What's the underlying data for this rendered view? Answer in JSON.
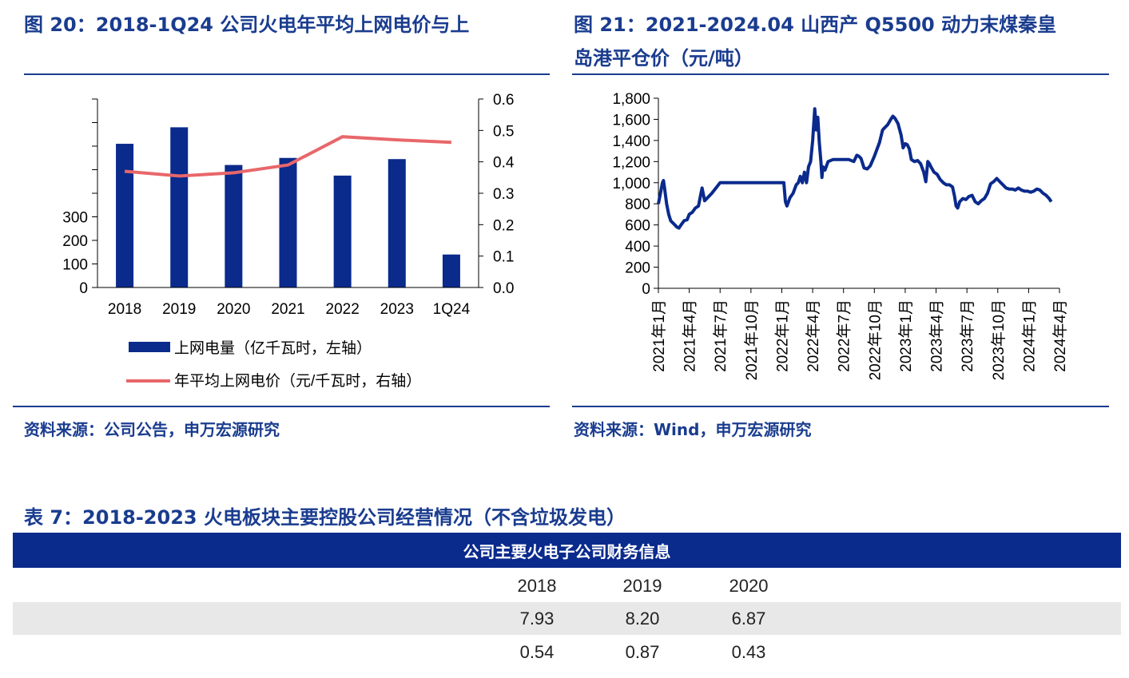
{
  "left_panel": {
    "title_line1": "图 20：2018-1Q24 公司火电年平均上网电价与上",
    "source": "资料来源：公司公告，申万宏源研究"
  },
  "right_panel": {
    "title_line1": "图 21：2021-2024.04 山西产 Q5500 动力末煤秦皇",
    "title_line2": "岛港平仓价（元/吨）",
    "source": "资料来源：Wind，申万宏源研究"
  },
  "table": {
    "title": "表 7：2018-2023 火电板块主要控股公司经营情况（不含垃圾发电）",
    "header": "公司主要火电子公司财务信息",
    "columns": [
      "2018",
      "2019",
      "2020"
    ],
    "rows": [
      [
        "7.93",
        "8.20",
        "6.87"
      ],
      [
        "0.54",
        "0.87",
        "0.43"
      ]
    ]
  },
  "chart_data": [
    {
      "type": "bar",
      "categories": [
        "2018",
        "2019",
        "2020",
        "2021",
        "2022",
        "2023",
        "1Q24"
      ],
      "series": [
        {
          "name": "上网电量（亿千瓦时，左轴）",
          "type": "bar",
          "axis": "left",
          "color": "#0a2a8c",
          "values": [
            610,
            680,
            520,
            550,
            475,
            545,
            140
          ]
        },
        {
          "name": "年平均上网电价（元/千瓦时，右轴）",
          "type": "line",
          "axis": "right",
          "color": "#e8676a",
          "values": [
            0.37,
            0.355,
            0.365,
            0.39,
            0.48,
            0.47,
            0.462
          ]
        }
      ],
      "yticks_left_visible": [
        "300",
        "200",
        "100",
        "0"
      ],
      "ylim_left": [
        0,
        800
      ],
      "yticks_right": [
        "0.6",
        "0.5",
        "0.4",
        "0.3",
        "0.2",
        "0.1",
        "0.0"
      ],
      "ylim_right": [
        0,
        0.6
      ],
      "legend_position": "bottom"
    },
    {
      "type": "line",
      "color": "#0a2a8c",
      "yticks": [
        "1,800",
        "1,600",
        "1,400",
        "1,200",
        "1,000",
        "800",
        "600",
        "400",
        "200",
        "0"
      ],
      "ylim": [
        0,
        1800
      ],
      "xticks": [
        "2021年1月",
        "2021年4月",
        "2021年7月",
        "2021年10月",
        "2022年1月",
        "2022年4月",
        "2022年7月",
        "2022年10月",
        "2023年1月",
        "2023年4月",
        "2023年7月",
        "2023年10月",
        "2024年1月",
        "2024年4月"
      ],
      "xlim_months": [
        0,
        39
      ],
      "points": [
        [
          0.0,
          800
        ],
        [
          0.2,
          900
        ],
        [
          0.4,
          1000
        ],
        [
          0.5,
          1020
        ],
        [
          0.6,
          950
        ],
        [
          0.8,
          800
        ],
        [
          1.0,
          700
        ],
        [
          1.2,
          640
        ],
        [
          1.5,
          610
        ],
        [
          1.8,
          580
        ],
        [
          2.0,
          570
        ],
        [
          2.2,
          600
        ],
        [
          2.5,
          640
        ],
        [
          2.8,
          650
        ],
        [
          3.0,
          700
        ],
        [
          3.3,
          720
        ],
        [
          3.6,
          760
        ],
        [
          3.9,
          780
        ],
        [
          4.1,
          880
        ],
        [
          4.25,
          950
        ],
        [
          4.35,
          900
        ],
        [
          4.5,
          830
        ],
        [
          4.8,
          860
        ],
        [
          5.2,
          900
        ],
        [
          5.6,
          950
        ],
        [
          6.0,
          1000
        ],
        [
          7.0,
          1000
        ],
        [
          8.0,
          1000
        ],
        [
          9.0,
          1000
        ],
        [
          10.0,
          1000
        ],
        [
          11.0,
          1000
        ],
        [
          12.0,
          1000
        ],
        [
          12.2,
          1000
        ],
        [
          12.35,
          820
        ],
        [
          12.5,
          780
        ],
        [
          12.8,
          860
        ],
        [
          13.1,
          900
        ],
        [
          13.4,
          980
        ],
        [
          13.6,
          1000
        ],
        [
          13.8,
          1060
        ],
        [
          14.0,
          1000
        ],
        [
          14.2,
          1100
        ],
        [
          14.4,
          1000
        ],
        [
          14.6,
          1150
        ],
        [
          14.8,
          1200
        ],
        [
          15.0,
          1400
        ],
        [
          15.2,
          1700
        ],
        [
          15.35,
          1500
        ],
        [
          15.5,
          1620
        ],
        [
          15.65,
          1380
        ],
        [
          15.8,
          1200
        ],
        [
          15.9,
          1050
        ],
        [
          16.0,
          1150
        ],
        [
          16.2,
          1120
        ],
        [
          16.5,
          1200
        ],
        [
          17.0,
          1220
        ],
        [
          17.5,
          1220
        ],
        [
          18.0,
          1220
        ],
        [
          18.5,
          1220
        ],
        [
          19.0,
          1200
        ],
        [
          19.3,
          1260
        ],
        [
          19.5,
          1250
        ],
        [
          19.7,
          1230
        ],
        [
          20.0,
          1140
        ],
        [
          20.3,
          1130
        ],
        [
          20.6,
          1160
        ],
        [
          21.0,
          1250
        ],
        [
          21.5,
          1380
        ],
        [
          21.8,
          1500
        ],
        [
          22.0,
          1520
        ],
        [
          22.3,
          1550
        ],
        [
          22.6,
          1600
        ],
        [
          22.8,
          1630
        ],
        [
          23.0,
          1610
        ],
        [
          23.3,
          1560
        ],
        [
          23.6,
          1450
        ],
        [
          23.8,
          1330
        ],
        [
          24.0,
          1370
        ],
        [
          24.2,
          1360
        ],
        [
          24.4,
          1320
        ],
        [
          24.6,
          1220
        ],
        [
          24.9,
          1200
        ],
        [
          25.2,
          1210
        ],
        [
          25.5,
          1180
        ],
        [
          25.8,
          1100
        ],
        [
          26.0,
          1010
        ],
        [
          26.2,
          1200
        ],
        [
          26.35,
          1180
        ],
        [
          26.5,
          1150
        ],
        [
          26.8,
          1100
        ],
        [
          27.1,
          1080
        ],
        [
          27.4,
          1030
        ],
        [
          27.7,
          1000
        ],
        [
          28.0,
          980
        ],
        [
          28.3,
          980
        ],
        [
          28.6,
          960
        ],
        [
          28.8,
          870
        ],
        [
          28.95,
          780
        ],
        [
          29.1,
          760
        ],
        [
          29.3,
          820
        ],
        [
          29.6,
          850
        ],
        [
          29.9,
          840
        ],
        [
          30.2,
          870
        ],
        [
          30.5,
          880
        ],
        [
          30.8,
          820
        ],
        [
          31.1,
          800
        ],
        [
          31.4,
          830
        ],
        [
          31.7,
          850
        ],
        [
          32.0,
          900
        ],
        [
          32.3,
          990
        ],
        [
          32.6,
          1010
        ],
        [
          32.9,
          1040
        ],
        [
          33.2,
          1010
        ],
        [
          33.5,
          980
        ],
        [
          33.8,
          950
        ],
        [
          34.1,
          940
        ],
        [
          34.4,
          940
        ],
        [
          34.7,
          930
        ],
        [
          35.0,
          950
        ],
        [
          35.3,
          930
        ],
        [
          35.6,
          920
        ],
        [
          35.9,
          920
        ],
        [
          36.2,
          910
        ],
        [
          36.5,
          920
        ],
        [
          36.8,
          940
        ],
        [
          37.1,
          930
        ],
        [
          37.4,
          900
        ],
        [
          37.7,
          880
        ],
        [
          38.0,
          850
        ],
        [
          38.2,
          820
        ]
      ]
    }
  ]
}
